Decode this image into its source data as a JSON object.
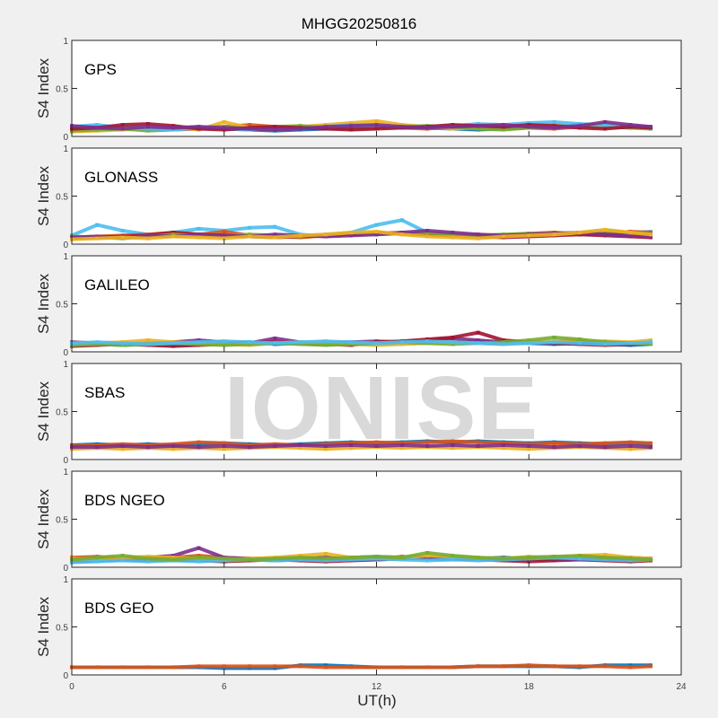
{
  "title": "MHGG20250816",
  "watermark": "IONISE",
  "chart_data": {
    "type": "scatter",
    "title": "MHGG20250816",
    "xlabel": "UT(h)",
    "ylabel": "S4 Index",
    "xlim": [
      0,
      24
    ],
    "ylim": [
      0,
      1
    ],
    "xticks": [
      0,
      6,
      12,
      18,
      24
    ],
    "yticks": [
      0,
      0.5,
      1
    ],
    "ytick_labels": [
      "0",
      "0.5",
      "1"
    ],
    "x": [
      0,
      1,
      2,
      3,
      4,
      5,
      6,
      7,
      8,
      9,
      10,
      11,
      12,
      13,
      14,
      15,
      16,
      17,
      18,
      19,
      20,
      21,
      22,
      22.8
    ],
    "colors": [
      "#0072BD",
      "#D95319",
      "#EDB120",
      "#7E2F8E",
      "#77AC30",
      "#4DBEEE",
      "#A2142F"
    ],
    "panels": [
      {
        "label": "GPS",
        "series": [
          {
            "color": 0,
            "values": [
              0.09,
              0.1,
              0.08,
              0.07,
              0.08,
              0.1,
              0.08,
              0.07,
              0.06,
              0.07,
              0.08,
              0.09,
              0.1,
              0.11,
              0.09,
              0.08,
              0.07,
              0.08,
              0.09,
              0.1,
              0.12,
              0.1,
              0.09,
              0.1
            ]
          },
          {
            "color": 1,
            "values": [
              0.07,
              0.08,
              0.09,
              0.08,
              0.07,
              0.08,
              0.1,
              0.12,
              0.1,
              0.09,
              0.08,
              0.1,
              0.11,
              0.09,
              0.08,
              0.1,
              0.12,
              0.11,
              0.09,
              0.08,
              0.1,
              0.13,
              0.1,
              0.09
            ]
          },
          {
            "color": 2,
            "values": [
              0.05,
              0.06,
              0.07,
              0.08,
              0.1,
              0.07,
              0.15,
              0.09,
              0.08,
              0.1,
              0.12,
              0.14,
              0.16,
              0.12,
              0.1,
              0.08,
              0.09,
              0.1,
              0.11,
              0.12,
              0.1,
              0.09,
              0.11,
              0.1
            ]
          },
          {
            "color": 4,
            "values": [
              0.06,
              0.07,
              0.08,
              0.06,
              0.07,
              0.09,
              0.1,
              0.08,
              0.1,
              0.11,
              0.09,
              0.08,
              0.09,
              0.1,
              0.11,
              0.1,
              0.08,
              0.07,
              0.09,
              0.1,
              0.11,
              0.12,
              0.09,
              0.08
            ]
          },
          {
            "color": 5,
            "values": [
              0.1,
              0.12,
              0.09,
              0.08,
              0.07,
              0.09,
              0.08,
              0.07,
              0.09,
              0.08,
              0.1,
              0.12,
              0.11,
              0.1,
              0.09,
              0.11,
              0.13,
              0.12,
              0.14,
              0.15,
              0.13,
              0.12,
              0.11,
              0.1
            ]
          },
          {
            "color": 6,
            "values": [
              0.08,
              0.09,
              0.12,
              0.13,
              0.11,
              0.08,
              0.07,
              0.09,
              0.1,
              0.09,
              0.08,
              0.07,
              0.08,
              0.09,
              0.1,
              0.12,
              0.11,
              0.1,
              0.12,
              0.11,
              0.09,
              0.08,
              0.1,
              0.09
            ]
          },
          {
            "color": 3,
            "values": [
              0.11,
              0.09,
              0.08,
              0.1,
              0.09,
              0.1,
              0.09,
              0.08,
              0.07,
              0.08,
              0.1,
              0.11,
              0.12,
              0.1,
              0.09,
              0.1,
              0.11,
              0.12,
              0.1,
              0.09,
              0.11,
              0.15,
              0.12,
              0.1
            ]
          }
        ]
      },
      {
        "label": "GLONASS",
        "series": [
          {
            "color": 5,
            "values": [
              0.09,
              0.2,
              0.14,
              0.1,
              0.12,
              0.16,
              0.14,
              0.17,
              0.18,
              0.1,
              0.08,
              0.12,
              0.2,
              0.25,
              0.12,
              0.1,
              0.09,
              0.08,
              0.1,
              0.12,
              0.11,
              0.1,
              0.12,
              0.13
            ]
          },
          {
            "color": 1,
            "values": [
              0.07,
              0.08,
              0.09,
              0.1,
              0.12,
              0.1,
              0.13,
              0.09,
              0.08,
              0.07,
              0.09,
              0.1,
              0.11,
              0.12,
              0.1,
              0.09,
              0.1,
              0.08,
              0.11,
              0.12,
              0.1,
              0.11,
              0.13,
              0.12
            ]
          },
          {
            "color": 6,
            "values": [
              0.06,
              0.07,
              0.08,
              0.09,
              0.12,
              0.1,
              0.09,
              0.08,
              0.07,
              0.08,
              0.09,
              0.1,
              0.12,
              0.11,
              0.1,
              0.09,
              0.08,
              0.07,
              0.08,
              0.09,
              0.1,
              0.09,
              0.08,
              0.07
            ]
          },
          {
            "color": 4,
            "values": [
              0.08,
              0.07,
              0.06,
              0.08,
              0.1,
              0.09,
              0.08,
              0.1,
              0.09,
              0.08,
              0.1,
              0.12,
              0.1,
              0.11,
              0.12,
              0.1,
              0.09,
              0.1,
              0.11,
              0.1,
              0.12,
              0.14,
              0.12,
              0.1
            ]
          },
          {
            "color": 3,
            "values": [
              0.07,
              0.08,
              0.07,
              0.09,
              0.08,
              0.1,
              0.09,
              0.08,
              0.1,
              0.09,
              0.08,
              0.09,
              0.1,
              0.12,
              0.14,
              0.12,
              0.1,
              0.09,
              0.1,
              0.11,
              0.12,
              0.1,
              0.09,
              0.08
            ]
          },
          {
            "color": 2,
            "values": [
              0.05,
              0.06,
              0.07,
              0.06,
              0.08,
              0.07,
              0.06,
              0.08,
              0.07,
              0.09,
              0.1,
              0.12,
              0.13,
              0.1,
              0.08,
              0.07,
              0.06,
              0.08,
              0.09,
              0.1,
              0.12,
              0.15,
              0.12,
              0.1
            ]
          }
        ]
      },
      {
        "label": "GALILEO",
        "series": [
          {
            "color": 0,
            "values": [
              0.09,
              0.08,
              0.07,
              0.08,
              0.07,
              0.08,
              0.09,
              0.1,
              0.08,
              0.09,
              0.1,
              0.09,
              0.08,
              0.1,
              0.09,
              0.1,
              0.11,
              0.1,
              0.09,
              0.08,
              0.09,
              0.08,
              0.07,
              0.08
            ]
          },
          {
            "color": 3,
            "values": [
              0.1,
              0.09,
              0.08,
              0.09,
              0.1,
              0.12,
              0.1,
              0.09,
              0.14,
              0.1,
              0.09,
              0.1,
              0.11,
              0.1,
              0.12,
              0.14,
              0.12,
              0.1,
              0.09,
              0.1,
              0.11,
              0.09,
              0.08,
              0.09
            ]
          },
          {
            "color": 6,
            "values": [
              0.06,
              0.07,
              0.08,
              0.07,
              0.06,
              0.07,
              0.08,
              0.09,
              0.1,
              0.09,
              0.08,
              0.07,
              0.1,
              0.11,
              0.13,
              0.15,
              0.2,
              0.12,
              0.1,
              0.09,
              0.08,
              0.07,
              0.08,
              0.09
            ]
          },
          {
            "color": 2,
            "values": [
              0.08,
              0.09,
              0.1,
              0.12,
              0.1,
              0.09,
              0.08,
              0.07,
              0.09,
              0.1,
              0.09,
              0.08,
              0.07,
              0.08,
              0.09,
              0.1,
              0.09,
              0.08,
              0.1,
              0.11,
              0.12,
              0.11,
              0.1,
              0.12
            ]
          },
          {
            "color": 4,
            "values": [
              0.07,
              0.08,
              0.07,
              0.08,
              0.09,
              0.08,
              0.07,
              0.08,
              0.09,
              0.08,
              0.07,
              0.08,
              0.09,
              0.1,
              0.09,
              0.08,
              0.09,
              0.1,
              0.12,
              0.15,
              0.13,
              0.1,
              0.09,
              0.08
            ]
          },
          {
            "color": 5,
            "values": [
              0.09,
              0.1,
              0.09,
              0.08,
              0.09,
              0.1,
              0.11,
              0.1,
              0.09,
              0.1,
              0.11,
              0.1,
              0.09,
              0.1,
              0.11,
              0.1,
              0.09,
              0.08,
              0.09,
              0.1,
              0.09,
              0.08,
              0.09,
              0.1
            ]
          }
        ]
      },
      {
        "label": "SBAS",
        "series": [
          {
            "color": 0,
            "values": [
              0.15,
              0.16,
              0.15,
              0.16,
              0.15,
              0.16,
              0.17,
              0.16,
              0.15,
              0.16,
              0.17,
              0.18,
              0.17,
              0.18,
              0.19,
              0.18,
              0.19,
              0.18,
              0.17,
              0.18,
              0.17,
              0.16,
              0.17,
              0.16
            ]
          },
          {
            "color": 1,
            "values": [
              0.14,
              0.15,
              0.16,
              0.15,
              0.16,
              0.18,
              0.17,
              0.15,
              0.16,
              0.15,
              0.16,
              0.17,
              0.18,
              0.17,
              0.18,
              0.19,
              0.18,
              0.17,
              0.16,
              0.17,
              0.16,
              0.17,
              0.18,
              0.17
            ]
          },
          {
            "color": 2,
            "values": [
              0.11,
              0.12,
              0.11,
              0.12,
              0.11,
              0.12,
              0.11,
              0.12,
              0.13,
              0.12,
              0.11,
              0.12,
              0.13,
              0.12,
              0.13,
              0.12,
              0.13,
              0.12,
              0.11,
              0.12,
              0.13,
              0.12,
              0.11,
              0.12
            ]
          },
          {
            "color": 3,
            "values": [
              0.13,
              0.13,
              0.14,
              0.13,
              0.14,
              0.13,
              0.14,
              0.13,
              0.14,
              0.15,
              0.14,
              0.15,
              0.14,
              0.15,
              0.14,
              0.15,
              0.14,
              0.15,
              0.14,
              0.13,
              0.14,
              0.13,
              0.14,
              0.13
            ]
          }
        ]
      },
      {
        "label": "BDS NGEO",
        "series": [
          {
            "color": 0,
            "values": [
              0.07,
              0.08,
              0.09,
              0.08,
              0.07,
              0.08,
              0.09,
              0.08,
              0.07,
              0.08,
              0.09,
              0.1,
              0.11,
              0.1,
              0.09,
              0.08,
              0.09,
              0.1,
              0.09,
              0.08,
              0.09,
              0.1,
              0.09,
              0.08
            ]
          },
          {
            "color": 1,
            "values": [
              0.1,
              0.11,
              0.09,
              0.08,
              0.1,
              0.12,
              0.1,
              0.09,
              0.08,
              0.1,
              0.09,
              0.08,
              0.09,
              0.11,
              0.1,
              0.09,
              0.08,
              0.09,
              0.1,
              0.11,
              0.1,
              0.09,
              0.1,
              0.09
            ]
          },
          {
            "color": 6,
            "values": [
              0.06,
              0.07,
              0.08,
              0.07,
              0.08,
              0.07,
              0.06,
              0.07,
              0.08,
              0.07,
              0.06,
              0.07,
              0.08,
              0.09,
              0.1,
              0.09,
              0.08,
              0.07,
              0.06,
              0.07,
              0.08,
              0.07,
              0.06,
              0.07
            ]
          },
          {
            "color": 3,
            "values": [
              0.08,
              0.09,
              0.08,
              0.1,
              0.12,
              0.2,
              0.1,
              0.09,
              0.08,
              0.09,
              0.1,
              0.09,
              0.08,
              0.09,
              0.1,
              0.09,
              0.08,
              0.09,
              0.1,
              0.09,
              0.08,
              0.09,
              0.08,
              0.09
            ]
          },
          {
            "color": 2,
            "values": [
              0.09,
              0.08,
              0.1,
              0.11,
              0.1,
              0.09,
              0.08,
              0.09,
              0.1,
              0.12,
              0.14,
              0.1,
              0.09,
              0.1,
              0.12,
              0.11,
              0.1,
              0.09,
              0.11,
              0.1,
              0.12,
              0.13,
              0.1,
              0.09
            ]
          },
          {
            "color": 5,
            "values": [
              0.05,
              0.06,
              0.07,
              0.06,
              0.07,
              0.06,
              0.07,
              0.08,
              0.07,
              0.08,
              0.07,
              0.08,
              0.09,
              0.08,
              0.07,
              0.08,
              0.07,
              0.08,
              0.09,
              0.1,
              0.09,
              0.08,
              0.07,
              0.08
            ]
          },
          {
            "color": 4,
            "values": [
              0.08,
              0.1,
              0.12,
              0.09,
              0.08,
              0.1,
              0.09,
              0.08,
              0.09,
              0.1,
              0.09,
              0.1,
              0.11,
              0.1,
              0.15,
              0.12,
              0.1,
              0.09,
              0.1,
              0.11,
              0.12,
              0.1,
              0.09,
              0.08
            ]
          }
        ]
      },
      {
        "label": "BDS GEO",
        "series": [
          {
            "color": 0,
            "values": [
              0.08,
              0.08,
              0.08,
              0.08,
              0.08,
              0.08,
              0.07,
              0.07,
              0.07,
              0.1,
              0.1,
              0.09,
              0.08,
              0.08,
              0.08,
              0.08,
              0.09,
              0.09,
              0.09,
              0.09,
              0.08,
              0.1,
              0.1,
              0.1
            ]
          },
          {
            "color": 1,
            "values": [
              0.08,
              0.08,
              0.08,
              0.08,
              0.08,
              0.09,
              0.09,
              0.09,
              0.09,
              0.09,
              0.08,
              0.08,
              0.08,
              0.08,
              0.08,
              0.08,
              0.09,
              0.09,
              0.1,
              0.09,
              0.09,
              0.09,
              0.08,
              0.09
            ]
          }
        ]
      }
    ]
  }
}
